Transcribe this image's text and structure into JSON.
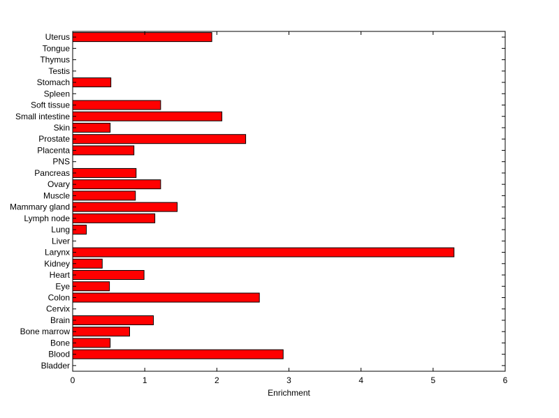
{
  "chart_data": {
    "type": "bar",
    "orientation": "horizontal",
    "title": "",
    "xlabel": "Enrichment",
    "ylabel": "",
    "xlim": [
      0,
      6
    ],
    "xticks": [
      "0",
      "1",
      "2",
      "3",
      "4",
      "5",
      "6"
    ],
    "grid": false,
    "categories": [
      "Uterus",
      "Tongue",
      "Thymus",
      "Testis",
      "Stomach",
      "Spleen",
      "Soft tissue",
      "Small intestine",
      "Skin",
      "Prostate",
      "Placenta",
      "PNS",
      "Pancreas",
      "Ovary",
      "Muscle",
      "Mammary gland",
      "Lymph node",
      "Lung",
      "Liver",
      "Larynx",
      "Kidney",
      "Heart",
      "Eye",
      "Colon",
      "Cervix",
      "Brain",
      "Bone marrow",
      "Bone",
      "Blood",
      "Bladder"
    ],
    "values": [
      1.93,
      0,
      0,
      0,
      0.53,
      0,
      1.22,
      2.07,
      0.52,
      2.4,
      0.85,
      0,
      0.88,
      1.22,
      0.87,
      1.45,
      1.14,
      0.19,
      0,
      5.29,
      0.41,
      0.99,
      0.51,
      2.59,
      0,
      1.12,
      0.79,
      0.52,
      2.92,
      0
    ],
    "bar_color": "#ff0000",
    "bar_edge_color": "#000000"
  }
}
